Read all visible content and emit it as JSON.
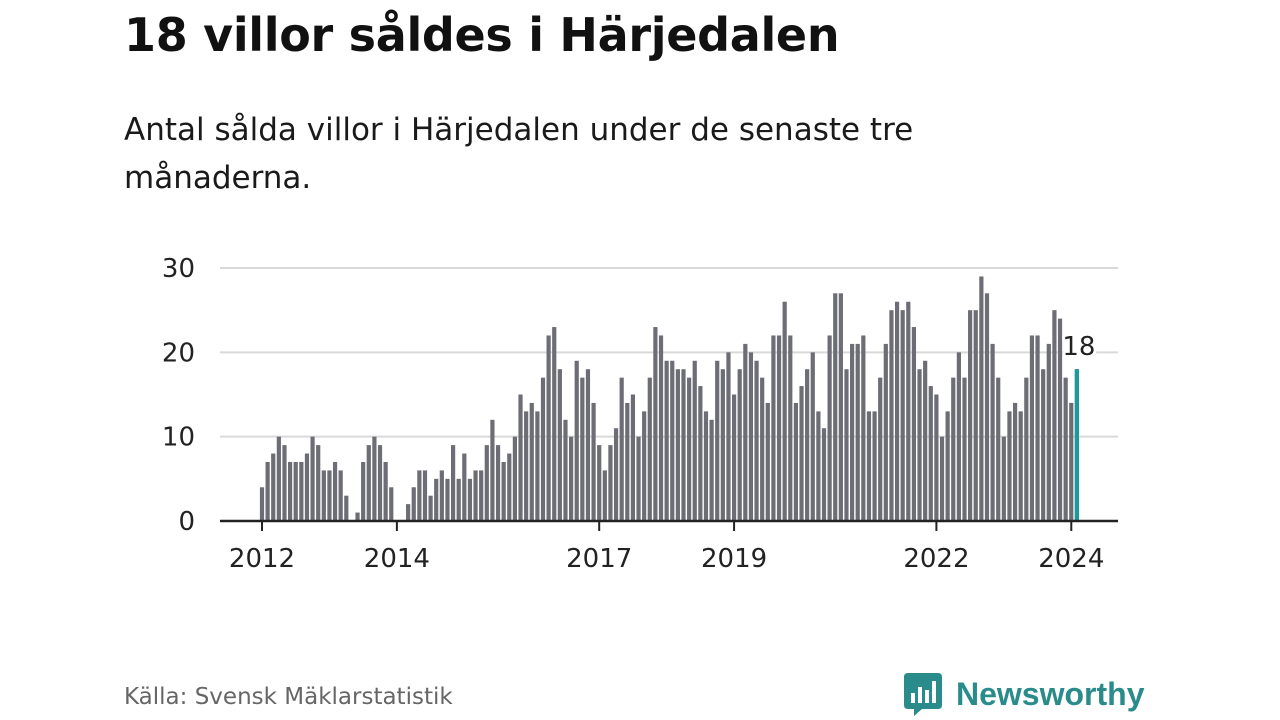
{
  "header": {
    "title": "18 villor såldes i Härjedalen",
    "subtitle": "Antal sålda villor i Härjedalen under de senaste tre månaderna."
  },
  "footer": {
    "source": "Källa: Svensk Mäklarstatistik",
    "brand": "Newsworthy",
    "brand_icon": "newsworthy-logo-icon"
  },
  "colors": {
    "bar": "#6d6d75",
    "highlight": "#1a9a9a",
    "grid": "#d9d9d9",
    "axis": "#222222",
    "brand": "#2a8c8a"
  },
  "chart_data": {
    "type": "bar",
    "title": "18 villor såldes i Härjedalen",
    "xlabel": "",
    "ylabel": "",
    "ylim": [
      0,
      30
    ],
    "yticks": [
      0,
      10,
      20,
      30
    ],
    "grid": true,
    "start": "2012-01",
    "xtick_labels": [
      {
        "label": "2012",
        "index": 0
      },
      {
        "label": "2014",
        "index": 24
      },
      {
        "label": "2017",
        "index": 60
      },
      {
        "label": "2019",
        "index": 84
      },
      {
        "label": "2022",
        "index": 120
      },
      {
        "label": "2024",
        "index": 144
      }
    ],
    "values": [
      4,
      7,
      8,
      10,
      9,
      7,
      7,
      7,
      8,
      10,
      9,
      6,
      6,
      7,
      6,
      3,
      0,
      1,
      7,
      9,
      10,
      9,
      7,
      4,
      0,
      0,
      2,
      4,
      6,
      6,
      3,
      5,
      6,
      5,
      9,
      5,
      8,
      5,
      6,
      6,
      9,
      12,
      9,
      7,
      8,
      10,
      15,
      13,
      14,
      13,
      17,
      22,
      23,
      18,
      12,
      10,
      19,
      17,
      18,
      14,
      9,
      6,
      9,
      11,
      17,
      14,
      15,
      10,
      13,
      17,
      23,
      22,
      19,
      19,
      18,
      18,
      17,
      19,
      16,
      13,
      12,
      19,
      18,
      20,
      15,
      18,
      21,
      20,
      19,
      17,
      14,
      22,
      22,
      26,
      22,
      14,
      16,
      18,
      20,
      13,
      11,
      22,
      27,
      27,
      18,
      21,
      21,
      22,
      13,
      13,
      17,
      21,
      25,
      26,
      25,
      26,
      23,
      18,
      19,
      16,
      15,
      10,
      13,
      17,
      20,
      17,
      25,
      25,
      29,
      27,
      21,
      17,
      10,
      13,
      14,
      13,
      17,
      22,
      22,
      18,
      21,
      25,
      24,
      17,
      14,
      18
    ],
    "highlight": {
      "index": 145,
      "value": 18,
      "label": "18"
    }
  }
}
